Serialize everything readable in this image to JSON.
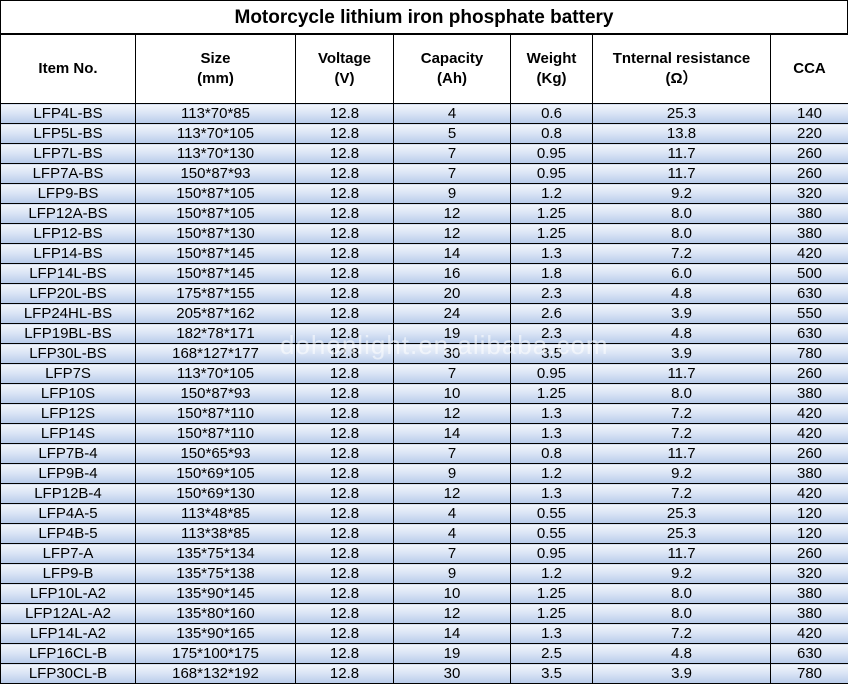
{
  "header": {
    "title": "Motorcycle lithium iron phosphate battery"
  },
  "table": {
    "columns": [
      "Item No.",
      "Size\n(mm)",
      "Voltage\n(V)",
      "Capacity\n(Ah)",
      "Weight\n(Kg)",
      "Tnternal resistance\n(Ω）",
      "CCA"
    ],
    "rows": [
      [
        "LFP4L-BS",
        "113*70*85",
        "12.8",
        "4",
        "0.6",
        "25.3",
        "140"
      ],
      [
        "LFP5L-BS",
        "113*70*105",
        "12.8",
        "5",
        "0.8",
        "13.8",
        "220"
      ],
      [
        "LFP7L-BS",
        "113*70*130",
        "12.8",
        "7",
        "0.95",
        "11.7",
        "260"
      ],
      [
        "LFP7A-BS",
        "150*87*93",
        "12.8",
        "7",
        "0.95",
        "11.7",
        "260"
      ],
      [
        "LFP9-BS",
        "150*87*105",
        "12.8",
        "9",
        "1.2",
        "9.2",
        "320"
      ],
      [
        "LFP12A-BS",
        "150*87*105",
        "12.8",
        "12",
        "1.25",
        "8.0",
        "380"
      ],
      [
        "LFP12-BS",
        "150*87*130",
        "12.8",
        "12",
        "1.25",
        "8.0",
        "380"
      ],
      [
        "LFP14-BS",
        "150*87*145",
        "12.8",
        "14",
        "1.3",
        "7.2",
        "420"
      ],
      [
        "LFP14L-BS",
        "150*87*145",
        "12.8",
        "16",
        "1.8",
        "6.0",
        "500"
      ],
      [
        "LFP20L-BS",
        "175*87*155",
        "12.8",
        "20",
        "2.3",
        "4.8",
        "630"
      ],
      [
        "LFP24HL-BS",
        "205*87*162",
        "12.8",
        "24",
        "2.6",
        "3.9",
        "550"
      ],
      [
        "LFP19BL-BS",
        "182*78*171",
        "12.8",
        "19",
        "2.3",
        "4.8",
        "630"
      ],
      [
        "LFP30L-BS",
        "168*127*177",
        "12.8",
        "30",
        "3.5",
        "3.9",
        "780"
      ],
      [
        "LFP7S",
        "113*70*105",
        "12.8",
        "7",
        "0.95",
        "11.7",
        "260"
      ],
      [
        "LFP10S",
        "150*87*93",
        "12.8",
        "10",
        "1.25",
        "8.0",
        "380"
      ],
      [
        "LFP12S",
        "150*87*110",
        "12.8",
        "12",
        "1.3",
        "7.2",
        "420"
      ],
      [
        "LFP14S",
        "150*87*110",
        "12.8",
        "14",
        "1.3",
        "7.2",
        "420"
      ],
      [
        "LFP7B-4",
        "150*65*93",
        "12.8",
        "7",
        "0.8",
        "11.7",
        "260"
      ],
      [
        "LFP9B-4",
        "150*69*105",
        "12.8",
        "9",
        "1.2",
        "9.2",
        "380"
      ],
      [
        "LFP12B-4",
        "150*69*130",
        "12.8",
        "12",
        "1.3",
        "7.2",
        "420"
      ],
      [
        "LFP4A-5",
        "113*48*85",
        "12.8",
        "4",
        "0.55",
        "25.3",
        "120"
      ],
      [
        "LFP4B-5",
        "113*38*85",
        "12.8",
        "4",
        "0.55",
        "25.3",
        "120"
      ],
      [
        "LFP7-A",
        "135*75*134",
        "12.8",
        "7",
        "0.95",
        "11.7",
        "260"
      ],
      [
        "LFP9-B",
        "135*75*138",
        "12.8",
        "9",
        "1.2",
        "9.2",
        "320"
      ],
      [
        "LFP10L-A2",
        "135*90*145",
        "12.8",
        "10",
        "1.25",
        "8.0",
        "380"
      ],
      [
        "LFP12AL-A2",
        "135*80*160",
        "12.8",
        "12",
        "1.25",
        "8.0",
        "380"
      ],
      [
        "LFP14L-A2",
        "135*90*165",
        "12.8",
        "14",
        "1.3",
        "7.2",
        "420"
      ],
      [
        "LFP16CL-B",
        "175*100*175",
        "12.8",
        "19",
        "2.5",
        "4.8",
        "630"
      ],
      [
        "LFP30CL-B",
        "168*132*192",
        "12.8",
        "30",
        "3.5",
        "3.9",
        "780"
      ]
    ]
  },
  "watermark": "dohonlight.en.alibaba.com"
}
